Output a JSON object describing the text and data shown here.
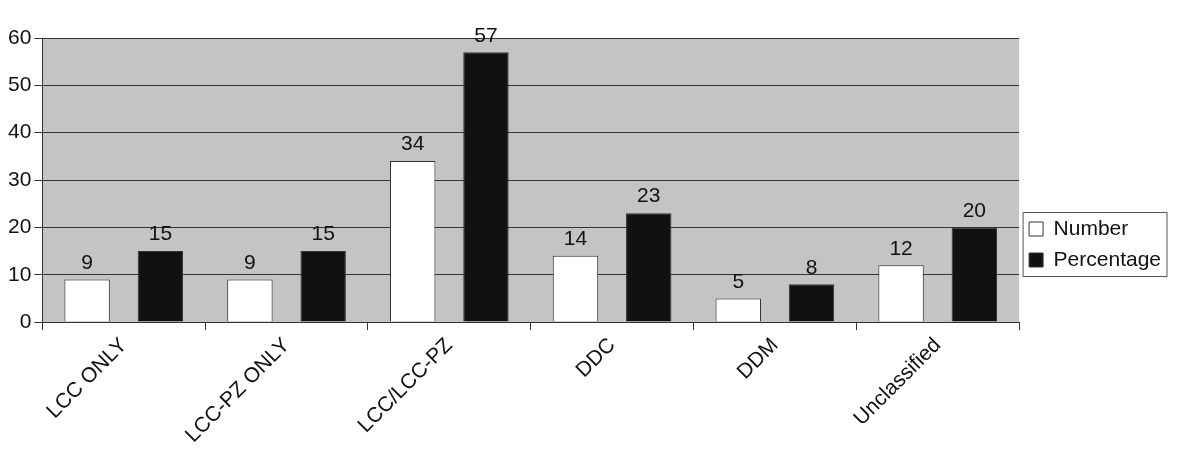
{
  "chart_data": {
    "type": "bar",
    "categories": [
      "LCC ONLY",
      "LCC-PZ ONLY",
      "LCC/LCC-PZ",
      "DDC",
      "DDM",
      "Unclassified"
    ],
    "series": [
      {
        "name": "Number",
        "color": "#ffffff",
        "values": [
          9,
          9,
          34,
          14,
          5,
          12
        ]
      },
      {
        "name": "Percentage",
        "color": "#111111",
        "values": [
          15,
          15,
          57,
          23,
          8,
          20
        ]
      }
    ],
    "ylim": [
      0,
      60
    ],
    "yticks": [
      0,
      10,
      20,
      30,
      40,
      50,
      60
    ],
    "grid": "y",
    "legend": "right",
    "data_labels": true
  }
}
